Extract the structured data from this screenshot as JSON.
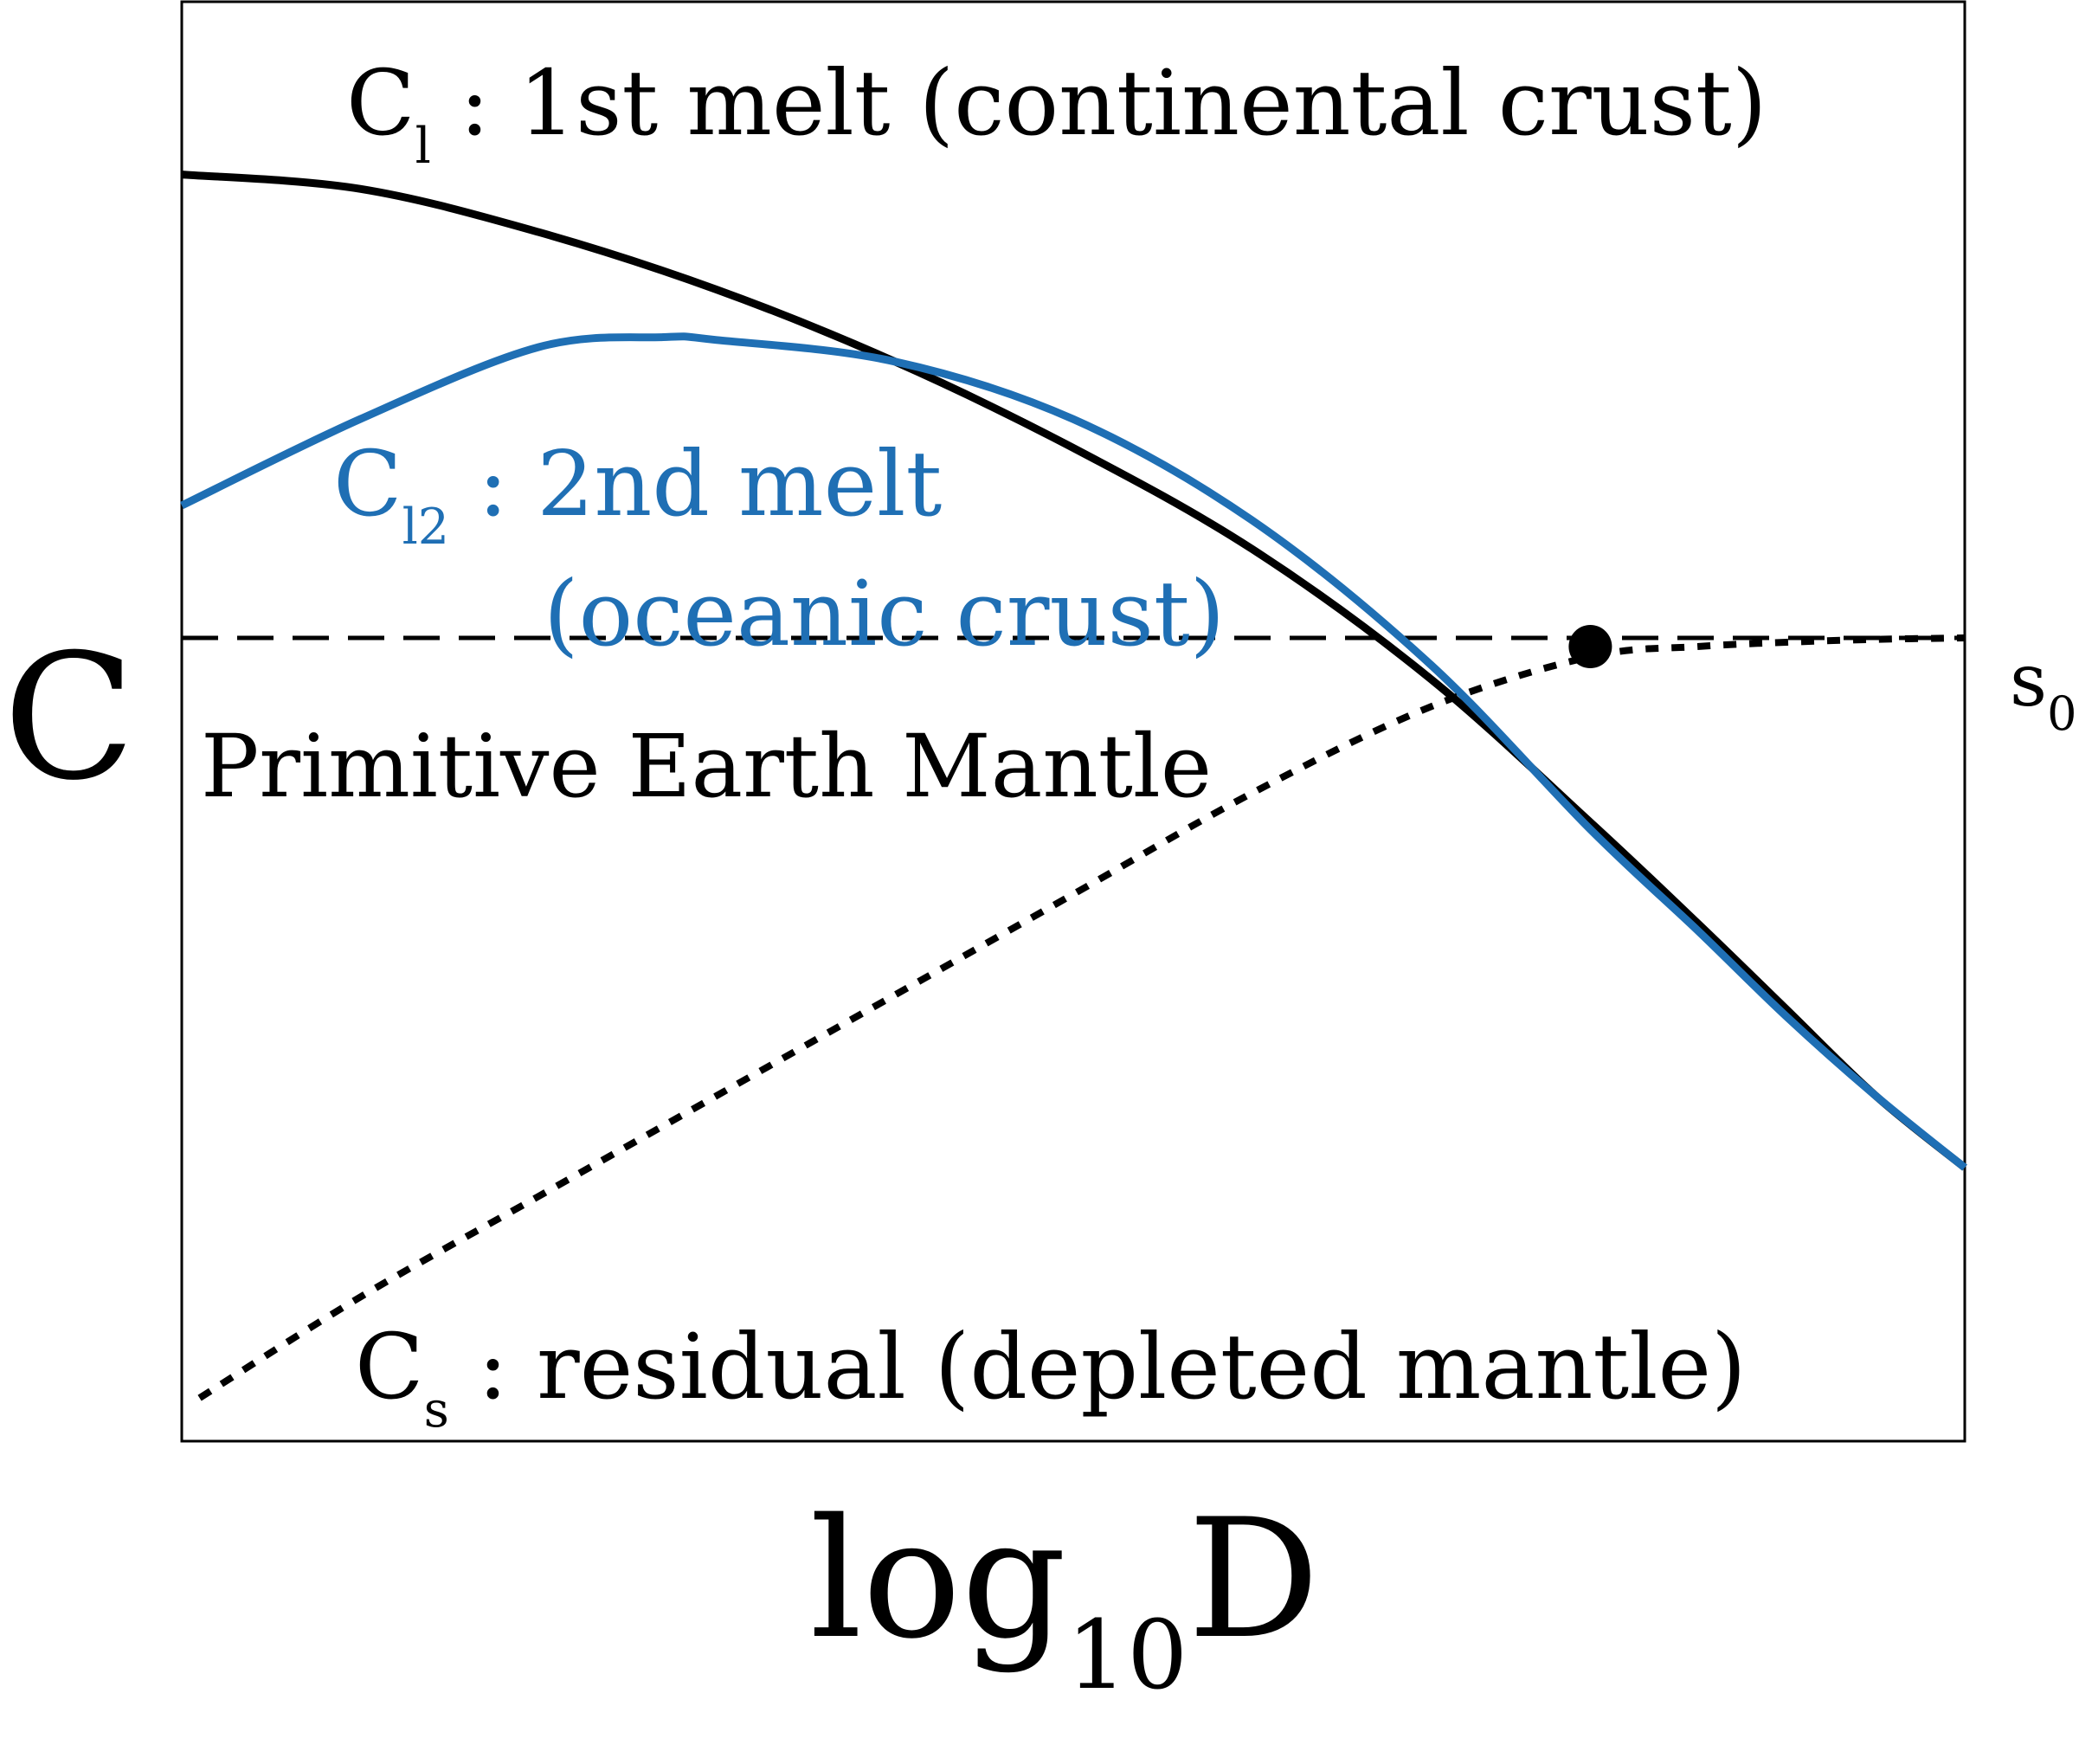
{
  "chart_data": {
    "type": "line",
    "title": "",
    "xlabel": {
      "base": "log",
      "subscript": "10",
      "tail": "D"
    },
    "ylabel": "C",
    "xlim": [
      0,
      1
    ],
    "ylim": [
      0,
      1
    ],
    "ticks": "none",
    "grid": false,
    "series": [
      {
        "key": "cl",
        "label_main": "C",
        "label_sub": "l",
        "label_rest": ": 1st melt (continental crust)",
        "color": "#000000",
        "style": "solid",
        "x": [
          0.0,
          0.1,
          0.2,
          0.3,
          0.4,
          0.5,
          0.6,
          0.7,
          0.79,
          0.85,
          0.9,
          0.95,
          1.0
        ],
        "y": [
          0.88,
          0.87,
          0.84,
          0.8,
          0.75,
          0.69,
          0.62,
          0.53,
          0.43,
          0.36,
          0.3,
          0.24,
          0.19
        ]
      },
      {
        "key": "cl2",
        "label_main": "C",
        "label_sub": "l2",
        "label_rest": ": 2nd melt",
        "label_line2": "(oceanic crust)",
        "color": "#1f6fb4",
        "style": "solid",
        "x": [
          0.0,
          0.1,
          0.2,
          0.27,
          0.3,
          0.4,
          0.5,
          0.6,
          0.7,
          0.79,
          0.85,
          0.9,
          0.95,
          1.0
        ],
        "y": [
          0.65,
          0.71,
          0.76,
          0.767,
          0.765,
          0.75,
          0.71,
          0.64,
          0.54,
          0.425,
          0.355,
          0.295,
          0.24,
          0.19
        ]
      },
      {
        "key": "cs",
        "label_main": "C",
        "label_sub": "s",
        "label_rest": ": residual (depleted mantle)",
        "color": "#000000",
        "style": "dotted",
        "x": [
          0.01,
          0.1,
          0.2,
          0.3,
          0.4,
          0.5,
          0.6,
          0.7,
          0.79,
          0.85,
          0.9,
          0.95,
          1.0
        ],
        "y": [
          0.03,
          0.1,
          0.17,
          0.24,
          0.31,
          0.38,
          0.45,
          0.51,
          0.545,
          0.552,
          0.555,
          0.557,
          0.558
        ]
      }
    ],
    "reference_line": {
      "y": 0.558,
      "label": "Primitive Earth Mantle",
      "end_label_main": "s",
      "end_label_sub": "0",
      "style": "dashed",
      "color": "#000000"
    },
    "intersection_point": {
      "x": 0.79,
      "y": 0.552
    }
  }
}
